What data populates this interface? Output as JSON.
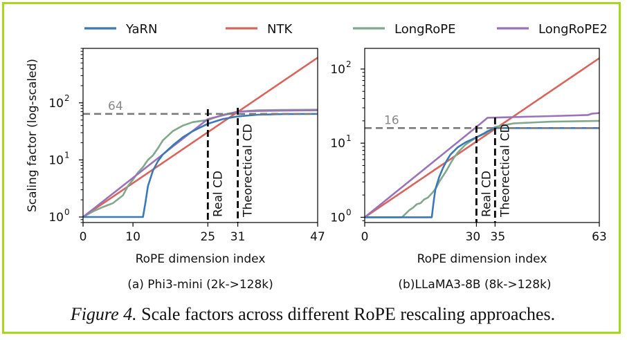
{
  "legend": [
    {
      "name": "YaRN",
      "color": "#3a78b5"
    },
    {
      "name": "NTK",
      "color": "#d9645c"
    },
    {
      "name": "LongRoPE",
      "color": "#7fa88c"
    },
    {
      "name": "LongRoPE2",
      "color": "#9b72b8"
    }
  ],
  "caption": {
    "figure": "Figure 4.",
    "text": " Scale factors across different RoPE rescaling approaches."
  },
  "chart_data": [
    {
      "type": "line",
      "title": "(a) Phi3-mini (2k->128k)",
      "xlabel": "RoPE dimension index",
      "ylabel": "Scaling factor (log-scaled)",
      "yscale": "log",
      "xlim": [
        0,
        47
      ],
      "ylim": [
        0.8,
        900
      ],
      "xticks": [
        0,
        10,
        25,
        31,
        47
      ],
      "yticks": [
        {
          "value": 1,
          "base": "10",
          "exp": "0"
        },
        {
          "value": 10,
          "base": "10",
          "exp": "1"
        },
        {
          "value": 100,
          "base": "10",
          "exp": "2"
        }
      ],
      "hline": {
        "value": 64,
        "label": "64"
      },
      "vlines": [
        {
          "x": 25,
          "label": "Real CD"
        },
        {
          "x": 31,
          "label": "Theorectical CD"
        }
      ],
      "series": [
        {
          "name": "YaRN",
          "x": [
            0,
            12,
            12.5,
            13,
            14,
            15,
            16,
            18,
            20,
            22,
            25,
            28,
            31,
            35,
            40,
            47
          ],
          "y": [
            1,
            1,
            1.8,
            3.5,
            6.5,
            9.5,
            12.5,
            18,
            25,
            32,
            43,
            52,
            58,
            62,
            63.5,
            64
          ]
        },
        {
          "name": "NTK",
          "x": [
            0,
            47
          ],
          "y": [
            1,
            620
          ]
        },
        {
          "name": "LongRoPE",
          "x": [
            0,
            2,
            4,
            6,
            8,
            9,
            10,
            11,
            12,
            13,
            14,
            15,
            16,
            18,
            20,
            22,
            25,
            28,
            31,
            35,
            40,
            47
          ],
          "y": [
            1,
            1.25,
            1.5,
            1.75,
            2.4,
            3.5,
            4.5,
            6,
            7.5,
            10,
            12,
            16,
            22,
            32,
            40,
            46,
            50,
            62,
            70,
            74,
            75,
            76
          ]
        },
        {
          "name": "LongRoPE2",
          "x": [
            0,
            25,
            31,
            35,
            40,
            47
          ],
          "y": [
            1,
            52,
            70,
            72,
            73,
            74
          ]
        }
      ]
    },
    {
      "type": "line",
      "title": "(b)LLaMA3-8B (8k->128k)",
      "xlabel": "RoPE dimension index",
      "ylabel": "",
      "yscale": "log",
      "xlim": [
        0,
        63
      ],
      "ylim": [
        0.85,
        190
      ],
      "xticks": [
        0,
        30,
        35,
        63
      ],
      "yticks": [
        {
          "value": 1,
          "base": "10",
          "exp": "0"
        },
        {
          "value": 10,
          "base": "10",
          "exp": "1"
        },
        {
          "value": 100,
          "base": "10",
          "exp": "2"
        }
      ],
      "hline": {
        "value": 16,
        "label": "16"
      },
      "vlines": [
        {
          "x": 30,
          "label": "Real CD"
        },
        {
          "x": 35,
          "label": "Theorectical CD"
        }
      ],
      "series": [
        {
          "name": "YaRN",
          "x": [
            0,
            18,
            18.5,
            19,
            20,
            21,
            22,
            23,
            25,
            27,
            30,
            32,
            33,
            34,
            35,
            63
          ],
          "y": [
            1,
            1,
            1.6,
            2.4,
            3.5,
            4.6,
            5.8,
            7,
            8.8,
            10.2,
            12,
            13.5,
            14.5,
            15.2,
            16,
            16
          ]
        },
        {
          "name": "NTK",
          "x": [
            0,
            63
          ],
          "y": [
            1,
            140
          ]
        },
        {
          "name": "LongRoPE",
          "x": [
            0,
            10,
            12,
            13,
            14,
            15,
            16,
            17,
            18,
            19,
            20,
            21,
            22,
            23,
            24,
            25,
            27,
            30,
            33,
            35,
            40,
            50,
            63
          ],
          "y": [
            1,
            1,
            1.25,
            1.35,
            1.5,
            1.55,
            1.75,
            1.85,
            2.1,
            2.4,
            3,
            3.6,
            4.3,
            5.3,
            6.4,
            7.5,
            9.5,
            12,
            14,
            16.5,
            18.5,
            19.5,
            20
          ]
        },
        {
          "name": "LongRoPE2",
          "x": [
            0,
            30,
            33,
            40,
            50,
            60,
            61,
            63
          ],
          "y": [
            1,
            16.5,
            22,
            22.5,
            23.2,
            24,
            25,
            25.5
          ]
        }
      ]
    }
  ]
}
